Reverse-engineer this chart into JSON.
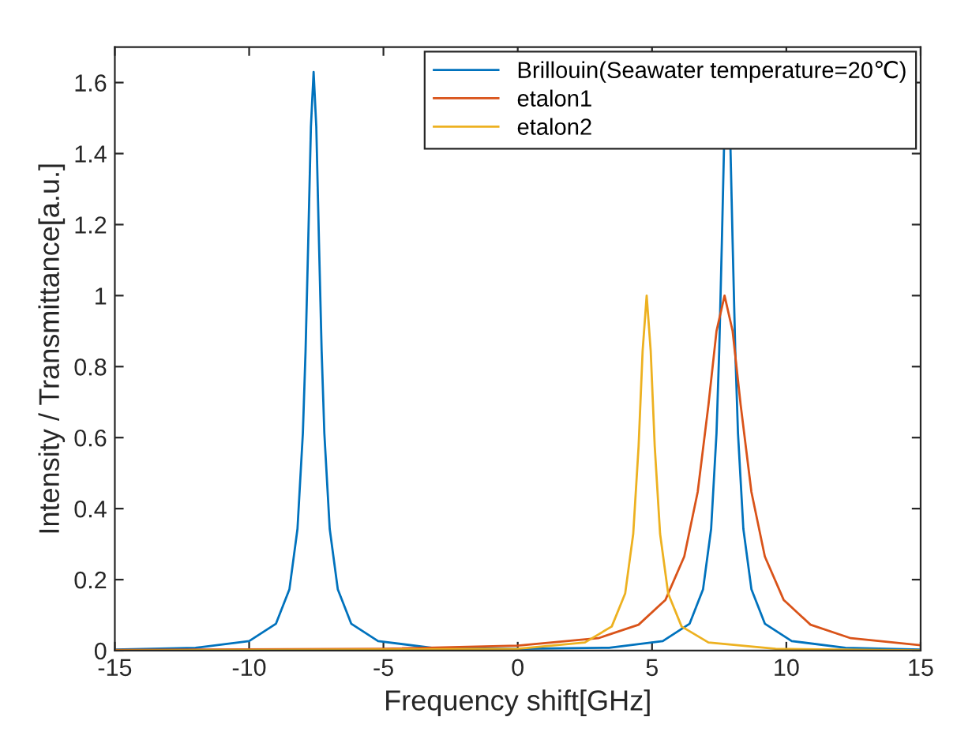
{
  "chart_data": {
    "type": "line",
    "xlabel": "Frequency shift[GHz]",
    "ylabel": "Intensity / Transmittance[a.u.]",
    "xlim": [
      -15,
      15
    ],
    "ylim": [
      0,
      1.7
    ],
    "xticks": [
      -15,
      -10,
      -5,
      0,
      5,
      10,
      15
    ],
    "yticks": [
      0,
      0.2,
      0.4,
      0.6,
      0.8,
      1,
      1.2,
      1.4,
      1.6
    ],
    "grid": false,
    "legend": "top right",
    "marker": "none",
    "line_style": "solid",
    "series": [
      {
        "name": "Brillouin(Seawater temperature=20℃)",
        "color": "#0072bd",
        "x": [
          -15,
          -12,
          -10,
          -9,
          -8.5,
          -8.2,
          -8,
          -7.9,
          -7.8,
          -7.7,
          -7.6,
          -7.5,
          -7.4,
          -7.3,
          -7.2,
          -7,
          -6.7,
          -6.2,
          -5.2,
          -3.2,
          0,
          3.4,
          5.4,
          6.4,
          6.9,
          7.2,
          7.4,
          7.5,
          7.6,
          7.68,
          7.8,
          7.92,
          8,
          8.1,
          8.2,
          8.4,
          8.7,
          9.2,
          10.2,
          12.2,
          15
        ],
        "values": [
          0.003,
          0.008,
          0.027,
          0.076,
          0.173,
          0.343,
          0.612,
          0.842,
          1.151,
          1.476,
          1.63,
          1.476,
          1.151,
          0.842,
          0.612,
          0.343,
          0.173,
          0.076,
          0.027,
          0.008,
          0.005,
          0.008,
          0.027,
          0.076,
          0.173,
          0.343,
          0.612,
          0.842,
          1.151,
          1.417,
          null,
          1.417,
          1.151,
          0.842,
          0.612,
          0.343,
          0.173,
          0.076,
          0.027,
          0.008,
          0.003
        ]
      },
      {
        "name": "etalon1",
        "color": "#d95319",
        "x": [
          -15,
          -5,
          0,
          3,
          4.5,
          5.5,
          6.2,
          6.7,
          7.1,
          7.4,
          7.7,
          8,
          8.3,
          8.7,
          9.2,
          9.9,
          10.9,
          12.4,
          15
        ],
        "values": [
          0.002,
          0.005,
          0.014,
          0.035,
          0.073,
          0.143,
          0.265,
          0.447,
          0.692,
          0.9,
          1.0,
          0.9,
          0.692,
          0.447,
          0.265,
          0.143,
          0.073,
          0.035,
          0.015
        ]
      },
      {
        "name": "etalon2",
        "color": "#edb120",
        "x": [
          -15,
          0,
          2.5,
          3.5,
          4,
          4.3,
          4.5,
          4.65,
          4.8,
          4.95,
          5.1,
          5.3,
          5.6,
          6.1,
          7.1,
          9.6,
          15
        ],
        "values": [
          0.0,
          0.005,
          0.023,
          0.068,
          0.161,
          0.329,
          0.576,
          0.845,
          1.0,
          0.845,
          0.576,
          0.329,
          0.161,
          0.068,
          0.023,
          0.005,
          0.001
        ]
      }
    ]
  }
}
